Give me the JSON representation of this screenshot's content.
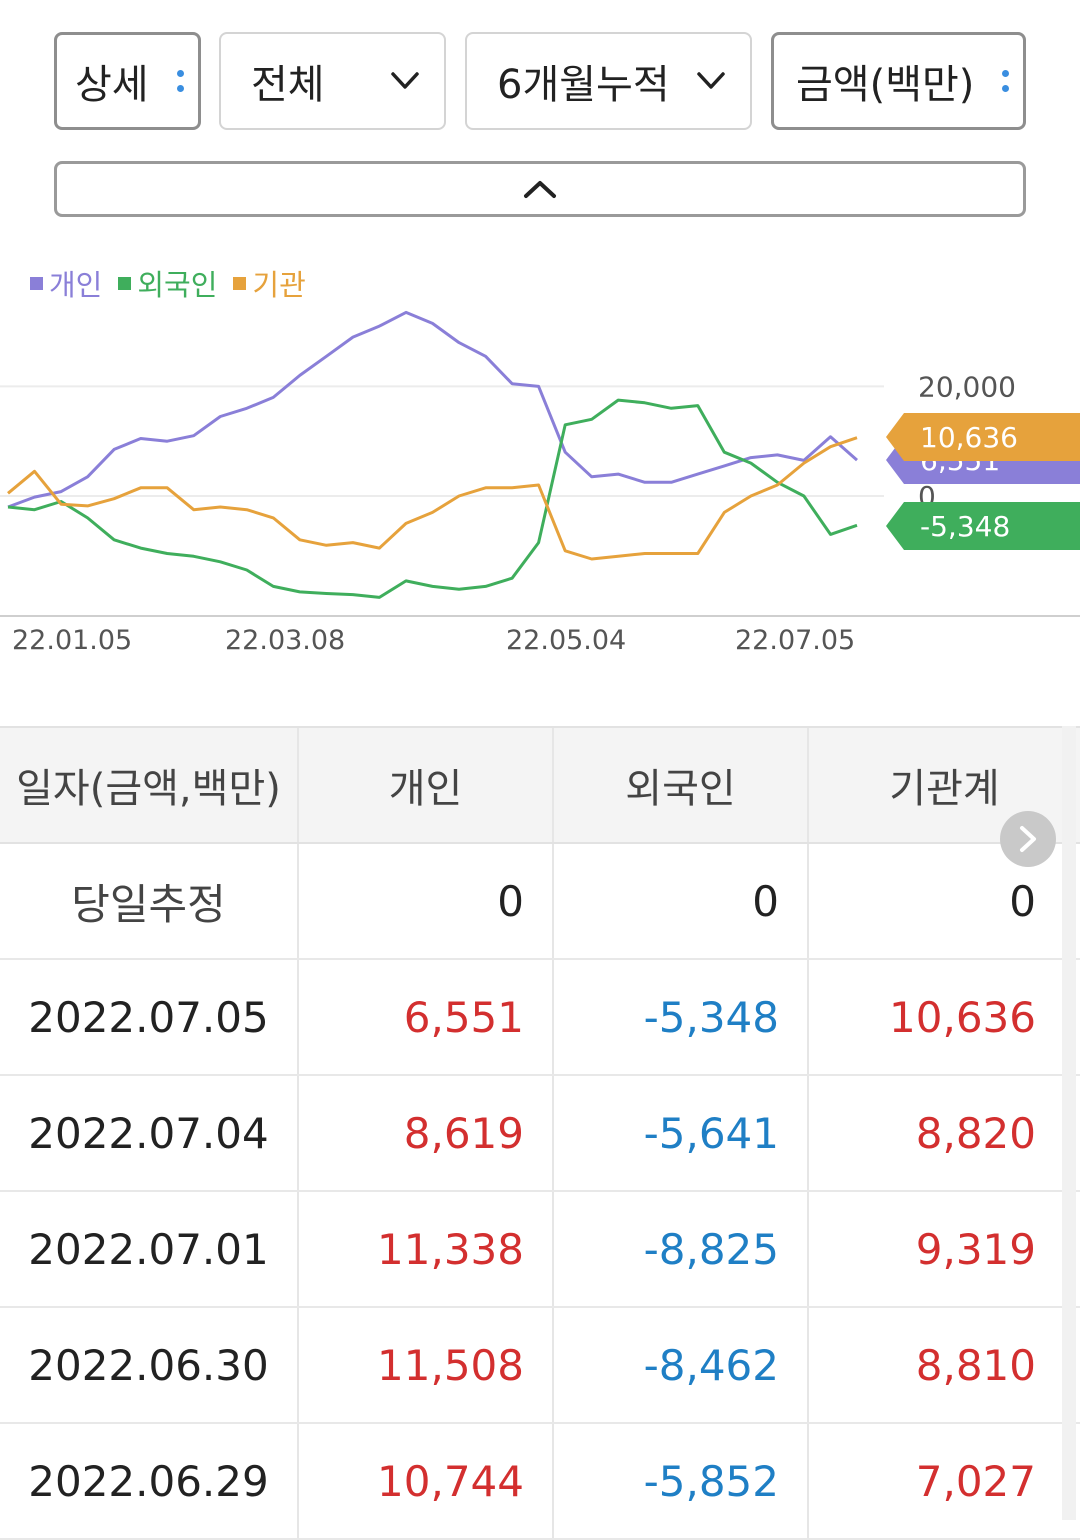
{
  "controls": {
    "detail": "상세",
    "scope": "전체",
    "period": "6개월누적",
    "unit": "금액(백만)"
  },
  "legend": [
    {
      "name": "개인",
      "color": "#8a7fd8"
    },
    {
      "name": "외국인",
      "color": "#3fae5c"
    },
    {
      "name": "기관",
      "color": "#e6a23c"
    }
  ],
  "chart_data": {
    "type": "line",
    "x_ticks": [
      "22.01.05",
      "22.03.08",
      "22.05.04",
      "22.07.05"
    ],
    "y_ticks": [
      "20,000",
      "0"
    ],
    "series": [
      {
        "name": "개인",
        "color": "#8a7fd8",
        "last_label": "6,551",
        "values": [
          -2000,
          -200,
          800,
          3500,
          8500,
          10500,
          10000,
          11000,
          14500,
          16000,
          18000,
          22000,
          25500,
          29000,
          31000,
          33500,
          31500,
          28000,
          25500,
          20500,
          20000,
          8000,
          3500,
          4000,
          2500,
          2500,
          4000,
          5500,
          7000,
          7500,
          6500,
          10800,
          6551
        ]
      },
      {
        "name": "외국인",
        "color": "#3fae5c",
        "last_label": "-5,348",
        "values": [
          -2000,
          -2500,
          -1000,
          -4000,
          -8000,
          -9500,
          -10500,
          -11000,
          -12000,
          -13500,
          -16500,
          -17500,
          -17800,
          -18000,
          -18500,
          -15500,
          -16500,
          -17000,
          -16500,
          -15000,
          -8500,
          13000,
          14000,
          17500,
          17000,
          16000,
          16500,
          8000,
          6000,
          2500,
          0,
          -7000,
          -5348
        ]
      },
      {
        "name": "기관",
        "color": "#e6a23c",
        "last_label": "10,636",
        "values": [
          500,
          4500,
          -1500,
          -1800,
          -500,
          1500,
          1500,
          -2500,
          -2000,
          -2500,
          -4000,
          -8000,
          -9000,
          -8500,
          -9500,
          -5000,
          -3000,
          0,
          1500,
          1500,
          2000,
          -10000,
          -11500,
          -11000,
          -10500,
          -10500,
          -10500,
          -3000,
          0,
          2000,
          6000,
          9000,
          10636
        ]
      }
    ]
  },
  "table": {
    "headers": [
      "일자(금액,백만)",
      "개인",
      "외국인",
      "기관계"
    ],
    "estimate_row": {
      "label": "당일추정",
      "values": [
        "0",
        "0",
        "0"
      ]
    },
    "rows": [
      {
        "date": "2022.07.05",
        "indiv": "6,551",
        "foreign": "-5,348",
        "inst": "10,636"
      },
      {
        "date": "2022.07.04",
        "indiv": "8,619",
        "foreign": "-5,641",
        "inst": "8,820"
      },
      {
        "date": "2022.07.01",
        "indiv": "11,338",
        "foreign": "-8,825",
        "inst": "9,319"
      },
      {
        "date": "2022.06.30",
        "indiv": "11,508",
        "foreign": "-8,462",
        "inst": "8,810"
      },
      {
        "date": "2022.06.29",
        "indiv": "10,744",
        "foreign": "-5,852",
        "inst": "7,027"
      }
    ]
  }
}
